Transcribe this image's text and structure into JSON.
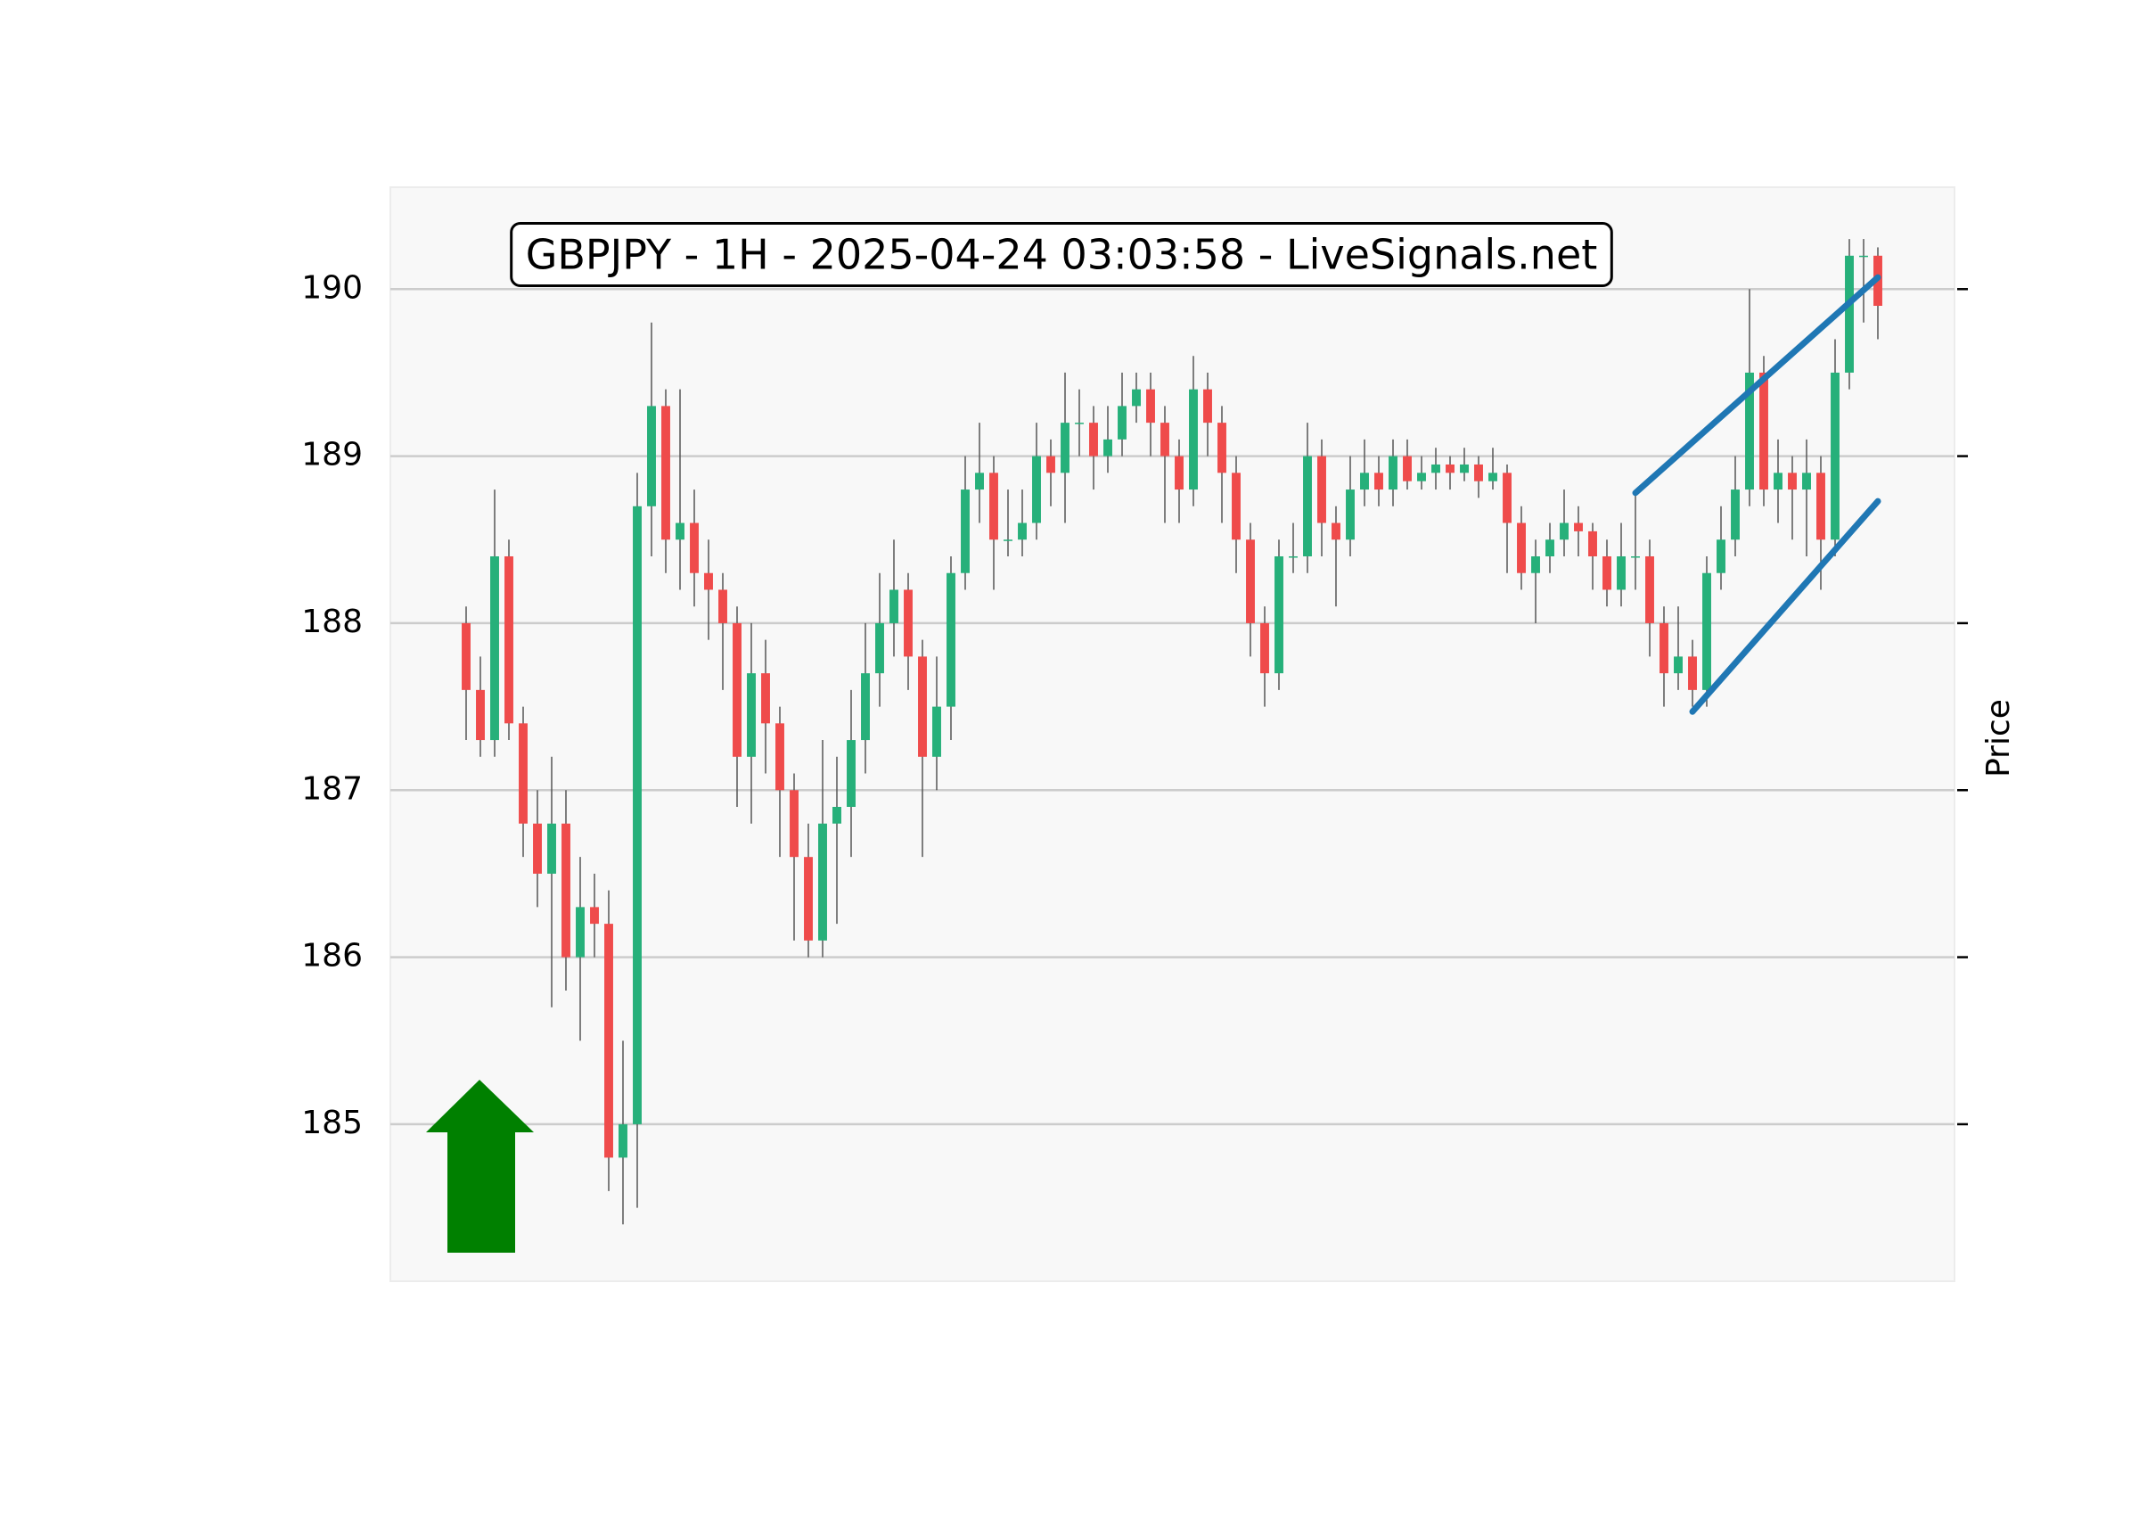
{
  "chart_data": {
    "type": "candlestick",
    "title": "GBPJPY - 1H - 2025-04-24 03:03:58 - LiveSignals.net",
    "y_label": "Price",
    "ylim": [
      184.06,
      190.61
    ],
    "yticks": [
      185,
      186,
      187,
      188,
      189,
      190
    ],
    "grid": true,
    "up_color": "#26b07a",
    "down_color": "#ef4b4b",
    "wick_color": "#555555",
    "open": [
      188.0,
      187.6,
      187.3,
      188.4,
      187.4,
      186.8,
      186.5,
      186.8,
      186.0,
      186.3,
      186.2,
      184.8,
      185.0,
      188.7,
      189.3,
      188.5,
      188.6,
      188.3,
      188.2,
      188.0,
      187.2,
      187.7,
      187.4,
      187.0,
      186.6,
      186.1,
      186.8,
      186.9,
      187.3,
      187.7,
      188.0,
      188.2,
      187.8,
      187.2,
      187.5,
      188.3,
      188.8,
      188.9,
      188.5,
      188.5,
      188.6,
      189.0,
      188.9,
      189.2,
      189.2,
      189.0,
      189.1,
      189.3,
      189.4,
      189.2,
      189.0,
      188.8,
      189.4,
      189.2,
      188.9,
      188.5,
      188.0,
      187.7,
      188.4,
      188.4,
      189.0,
      188.6,
      188.5,
      188.8,
      188.9,
      188.8,
      189.0,
      188.85,
      188.9,
      188.95,
      188.9,
      188.95,
      188.85,
      188.9,
      188.6,
      188.3,
      188.4,
      188.5,
      188.6,
      188.55,
      188.4,
      188.2,
      188.4,
      188.4,
      188.0,
      187.7,
      187.8,
      187.6,
      188.3,
      188.5,
      188.8,
      189.5,
      188.8,
      188.9,
      188.8,
      188.9,
      188.5,
      189.5,
      190.2,
      190.2
    ],
    "high": [
      188.1,
      187.8,
      188.8,
      188.5,
      187.5,
      187.0,
      187.2,
      187.0,
      186.6,
      186.5,
      186.4,
      185.5,
      188.9,
      189.8,
      189.4,
      189.4,
      188.8,
      188.5,
      188.3,
      188.1,
      188.0,
      187.9,
      187.5,
      187.1,
      186.8,
      187.3,
      187.2,
      187.6,
      188.0,
      188.3,
      188.5,
      188.3,
      187.9,
      187.8,
      188.4,
      189.0,
      189.2,
      189.0,
      188.8,
      188.8,
      189.2,
      189.1,
      189.5,
      189.4,
      189.3,
      189.3,
      189.5,
      189.5,
      189.5,
      189.3,
      189.1,
      189.6,
      189.5,
      189.3,
      189.0,
      188.6,
      188.1,
      188.5,
      188.6,
      189.2,
      189.1,
      188.7,
      189.0,
      189.1,
      189.0,
      189.1,
      189.1,
      189.0,
      189.05,
      189.0,
      189.05,
      189.0,
      189.05,
      188.95,
      188.7,
      188.5,
      188.6,
      188.8,
      188.7,
      188.6,
      188.5,
      188.6,
      188.8,
      188.5,
      188.1,
      188.1,
      187.9,
      188.4,
      188.7,
      189.0,
      190.0,
      189.6,
      189.1,
      189.0,
      189.1,
      189.0,
      189.7,
      190.3,
      190.3,
      190.25
    ],
    "low": [
      187.3,
      187.2,
      187.2,
      187.3,
      186.6,
      186.3,
      185.7,
      185.8,
      185.5,
      186.0,
      184.6,
      184.4,
      184.5,
      188.4,
      188.3,
      188.2,
      188.1,
      187.9,
      187.6,
      186.9,
      186.8,
      187.1,
      186.6,
      186.1,
      186.0,
      186.0,
      186.2,
      186.6,
      187.1,
      187.5,
      187.8,
      187.6,
      186.6,
      187.0,
      187.3,
      188.2,
      188.6,
      188.2,
      188.4,
      188.4,
      188.5,
      188.7,
      188.6,
      189.0,
      188.8,
      188.9,
      189.0,
      189.2,
      189.0,
      188.6,
      188.6,
      188.7,
      189.0,
      188.6,
      188.3,
      187.8,
      187.5,
      187.6,
      188.3,
      188.3,
      188.4,
      188.1,
      188.4,
      188.7,
      188.7,
      188.7,
      188.8,
      188.8,
      188.8,
      188.8,
      188.85,
      188.75,
      188.8,
      188.3,
      188.2,
      188.0,
      188.3,
      188.4,
      188.4,
      188.2,
      188.1,
      188.1,
      188.2,
      187.8,
      187.5,
      187.6,
      187.5,
      187.5,
      188.2,
      188.4,
      188.7,
      188.7,
      188.6,
      188.5,
      188.4,
      188.2,
      188.4,
      189.4,
      189.8,
      189.7
    ],
    "close": [
      187.6,
      187.3,
      188.4,
      187.4,
      186.8,
      186.5,
      186.8,
      186.0,
      186.3,
      186.2,
      184.8,
      185.0,
      188.7,
      189.3,
      188.5,
      188.6,
      188.3,
      188.2,
      188.0,
      187.2,
      187.7,
      187.4,
      187.0,
      186.6,
      186.1,
      186.8,
      186.9,
      187.3,
      187.7,
      188.0,
      188.2,
      187.8,
      187.2,
      187.5,
      188.3,
      188.8,
      188.9,
      188.5,
      188.5,
      188.6,
      189.0,
      188.9,
      189.2,
      189.2,
      189.0,
      189.1,
      189.3,
      189.4,
      189.2,
      189.0,
      188.8,
      189.4,
      189.2,
      188.9,
      188.5,
      188.0,
      187.7,
      188.4,
      188.4,
      189.0,
      188.6,
      188.5,
      188.8,
      188.9,
      188.8,
      189.0,
      188.85,
      188.9,
      188.95,
      188.9,
      188.95,
      188.85,
      188.9,
      188.6,
      188.3,
      188.4,
      188.5,
      188.6,
      188.55,
      188.4,
      188.2,
      188.4,
      188.4,
      188.0,
      187.7,
      187.8,
      187.6,
      188.3,
      188.5,
      188.8,
      189.5,
      188.8,
      188.9,
      188.8,
      188.9,
      188.5,
      189.5,
      190.2,
      190.2,
      189.9
    ],
    "trendlines": [
      {
        "color": "#1f77b4",
        "x": [
          82,
          99
        ],
        "y": [
          188.78,
          190.07
        ]
      },
      {
        "color": "#1f77b4",
        "x": [
          86,
          99
        ],
        "y": [
          187.47,
          188.73
        ]
      }
    ]
  }
}
